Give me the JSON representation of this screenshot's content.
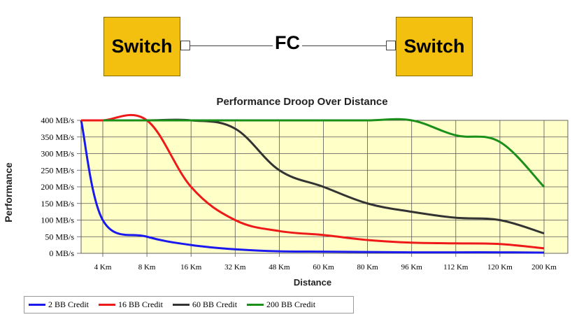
{
  "diagram": {
    "left_switch_label": "Switch",
    "right_switch_label": "Switch",
    "link_label": "FC",
    "switch_color": "#f3c010"
  },
  "chart_data": {
    "type": "line",
    "title": "Performance Droop Over Distance",
    "xlabel": "Distance",
    "ylabel": "Performance",
    "categories": [
      "4 Km",
      "8 Km",
      "16 Km",
      "32 Km",
      "48 Km",
      "60 Km",
      "80 Km",
      "96 Km",
      "112 Km",
      "120 Km",
      "200 Km"
    ],
    "y_ticks": [
      "0 MB/s",
      "50 MB/s",
      "100 MB/s",
      "150 MB/s",
      "200 MB/s",
      "250 MB/s",
      "300 MB/s",
      "350 MB/s",
      "400 MB/s"
    ],
    "ylim": [
      0,
      400
    ],
    "grid": true,
    "plot_background": "#ffffc8",
    "legend_position": "bottom",
    "series": [
      {
        "name": "2 BB Credit",
        "color": "#1a1aee",
        "start_value": 400,
        "values": [
          100,
          50,
          25,
          12,
          6,
          5,
          4,
          3,
          3,
          3,
          2
        ]
      },
      {
        "name": "16 BB Credit",
        "color": "#ee1a1a",
        "start_value": 400,
        "values": [
          400,
          400,
          200,
          100,
          67,
          55,
          40,
          32,
          30,
          28,
          15
        ]
      },
      {
        "name": "60 BB Credit",
        "color": "#333333",
        "values": [
          400,
          400,
          400,
          375,
          250,
          200,
          150,
          125,
          107,
          100,
          60
        ]
      },
      {
        "name": "200 BB Credit",
        "color": "#1a8f1a",
        "values": [
          400,
          400,
          400,
          400,
          400,
          400,
          400,
          400,
          355,
          335,
          200
        ]
      }
    ]
  }
}
